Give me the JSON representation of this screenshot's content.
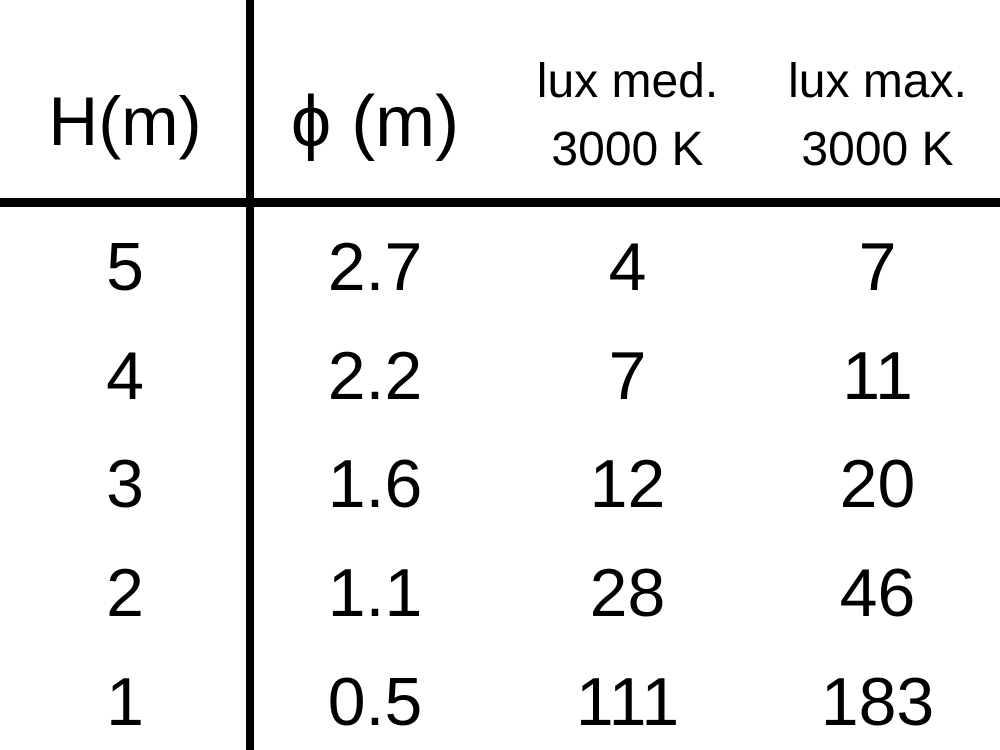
{
  "meta": {
    "background_color": "#ffffff",
    "text_color": "#000000",
    "line_color": "#000000"
  },
  "table": {
    "headers": [
      {
        "label": "H(m)"
      },
      {
        "label": "ϕ (m)"
      },
      {
        "line1": "lux med.",
        "line2": "3000 K"
      },
      {
        "line1": "lux max.",
        "line2": "3000 K"
      }
    ],
    "rows": [
      [
        "5",
        "2.7",
        "4",
        "7"
      ],
      [
        "4",
        "2.2",
        "7",
        "11"
      ],
      [
        "3",
        "1.6",
        "12",
        "20"
      ],
      [
        "2",
        "1.1",
        "28",
        "46"
      ],
      [
        "1",
        "0.5",
        "111",
        "183"
      ]
    ]
  },
  "chart_data": {
    "type": "table",
    "title": "",
    "columns": [
      "H(m)",
      "ϕ (m)",
      "lux med. 3000 K",
      "lux max. 3000 K"
    ],
    "rows": [
      [
        5,
        2.7,
        4,
        7
      ],
      [
        4,
        2.2,
        7,
        11
      ],
      [
        3,
        1.6,
        12,
        20
      ],
      [
        2,
        1.1,
        28,
        46
      ],
      [
        1,
        0.5,
        111,
        183
      ]
    ],
    "layout_hints": {
      "vertical_divider_after_column": 1,
      "horizontal_divider_below_header": true,
      "outer_border": false
    }
  }
}
